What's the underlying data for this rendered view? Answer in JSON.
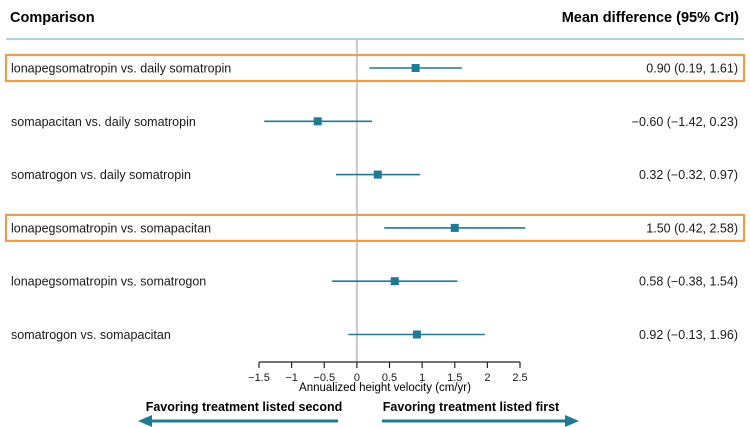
{
  "chart_data": {
    "type": "forest",
    "headers": {
      "left": "Comparison",
      "right": "Mean difference (95% CrI)"
    },
    "xlabel": "Annualized height velocity (cm/yr)",
    "xlim": [
      -1.5,
      2.5
    ],
    "ticks": [
      -1.5,
      -1,
      -0.5,
      0,
      0.5,
      1,
      1.5,
      2,
      2.5
    ],
    "tick_labels": [
      "−1.5",
      "−1",
      "−0.5",
      "0",
      "0.5",
      "1",
      "1.5",
      "2",
      "2.5"
    ],
    "reference_line": 0,
    "rows": [
      {
        "label": "lonapegsomatropin vs. daily somatropin",
        "mean": 0.9,
        "lower": 0.19,
        "upper": 1.61,
        "text": "0.90 (0.19, 1.61)",
        "highlighted": true
      },
      {
        "label": "somapacitan vs. daily somatropin",
        "mean": -0.6,
        "lower": -1.42,
        "upper": 0.23,
        "text": "−0.60 (−1.42, 0.23)",
        "highlighted": false
      },
      {
        "label": "somatrogon vs. daily somatropin",
        "mean": 0.32,
        "lower": -0.32,
        "upper": 0.97,
        "text": "0.32 (−0.32, 0.97)",
        "highlighted": false
      },
      {
        "label": "lonapegsomatropin vs. somapacitan",
        "mean": 1.5,
        "lower": 0.42,
        "upper": 2.58,
        "text": "1.50 (0.42, 2.58)",
        "highlighted": true
      },
      {
        "label": "lonapegsomatropin vs. somatrogon",
        "mean": 0.58,
        "lower": -0.38,
        "upper": 1.54,
        "text": "0.58 (−0.38, 1.54)",
        "highlighted": false
      },
      {
        "label": "somatrogon vs. somapacitan",
        "mean": 0.92,
        "lower": -0.13,
        "upper": 1.96,
        "text": "0.92 (−0.13, 1.96)",
        "highlighted": false
      }
    ],
    "favoring_left": "Favoring treatment listed second",
    "favoring_right": "Favoring treatment listed first"
  },
  "colors": {
    "series": "#1e7a96",
    "highlight": "#ee9d4e",
    "header_rule": "#7fb9c9",
    "reference": "#c8c8c8",
    "axis": "#222222"
  }
}
